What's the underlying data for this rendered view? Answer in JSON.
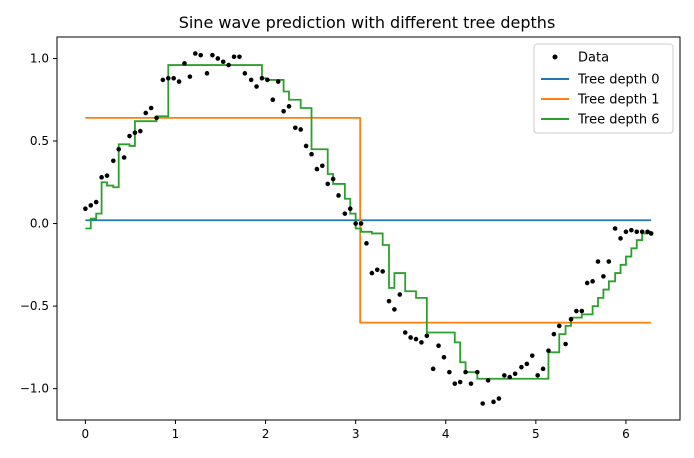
{
  "chart_data": {
    "type": "line",
    "title": "Sine wave prediction with different tree depths",
    "xlabel": "",
    "ylabel": "",
    "xlim": [
      -0.315,
      6.6
    ],
    "ylim": [
      -1.19,
      1.13
    ],
    "x_ticks": [
      0,
      1,
      2,
      3,
      4,
      5,
      6
    ],
    "x_tick_labels": [
      "0",
      "1",
      "2",
      "3",
      "4",
      "5",
      "6"
    ],
    "y_ticks": [
      -1.0,
      -0.5,
      0.0,
      0.5,
      1.0
    ],
    "y_tick_labels": [
      "−1.0",
      "−0.5",
      "0.0",
      "0.5",
      "1.0"
    ],
    "grid": false,
    "legend_position": "top-right",
    "legend": [
      "Data",
      "Tree depth 0",
      "Tree depth 1",
      "Tree depth 6"
    ],
    "colors": {
      "data": "#000000",
      "depth0": "#1f77b4",
      "depth1": "#ff7f0e",
      "depth6": "#2ca02c"
    },
    "scatter": {
      "name": "Data",
      "x": [
        0.0,
        0.06,
        0.12,
        0.18,
        0.24,
        0.31,
        0.37,
        0.43,
        0.49,
        0.55,
        0.61,
        0.67,
        0.73,
        0.79,
        0.86,
        0.92,
        0.98,
        1.04,
        1.1,
        1.16,
        1.22,
        1.28,
        1.35,
        1.41,
        1.47,
        1.53,
        1.59,
        1.65,
        1.71,
        1.77,
        1.84,
        1.9,
        1.96,
        2.02,
        2.08,
        2.14,
        2.2,
        2.26,
        2.33,
        2.39,
        2.45,
        2.51,
        2.57,
        2.63,
        2.69,
        2.75,
        2.81,
        2.88,
        2.94,
        3.0,
        3.06,
        3.12,
        3.18,
        3.24,
        3.3,
        3.37,
        3.43,
        3.49,
        3.55,
        3.61,
        3.67,
        3.73,
        3.79,
        3.86,
        3.92,
        3.98,
        4.04,
        4.1,
        4.16,
        4.22,
        4.28,
        4.35,
        4.41,
        4.47,
        4.53,
        4.59,
        4.65,
        4.71,
        4.77,
        4.84,
        4.9,
        4.96,
        5.02,
        5.08,
        5.14,
        5.2,
        5.26,
        5.33,
        5.39,
        5.45,
        5.51,
        5.57,
        5.63,
        5.69,
        5.75,
        5.81,
        5.88,
        5.94,
        6.0,
        6.06,
        6.12,
        6.18,
        6.24,
        6.28
      ],
      "y": [
        0.09,
        0.11,
        0.13,
        0.28,
        0.29,
        0.38,
        0.45,
        0.4,
        0.53,
        0.55,
        0.56,
        0.67,
        0.7,
        0.64,
        0.87,
        0.88,
        0.88,
        0.86,
        0.97,
        0.89,
        1.03,
        1.02,
        0.91,
        1.02,
        1.0,
        0.98,
        0.96,
        1.01,
        1.01,
        0.91,
        0.87,
        0.83,
        0.88,
        0.87,
        0.75,
        0.86,
        0.68,
        0.71,
        0.58,
        0.57,
        0.47,
        0.42,
        0.33,
        0.35,
        0.24,
        0.27,
        0.17,
        0.06,
        0.09,
        0.0,
        0.0,
        -0.12,
        -0.3,
        -0.28,
        -0.29,
        -0.47,
        -0.52,
        -0.43,
        -0.66,
        -0.69,
        -0.7,
        -0.72,
        -0.68,
        -0.88,
        -0.74,
        -0.81,
        -0.9,
        -0.97,
        -0.96,
        -0.9,
        -0.97,
        -0.9,
        -1.09,
        -0.95,
        -1.08,
        -1.06,
        -0.92,
        -0.93,
        -0.91,
        -0.87,
        -0.85,
        -0.8,
        -0.92,
        -0.88,
        -0.77,
        -0.67,
        -0.62,
        -0.73,
        -0.58,
        -0.53,
        -0.53,
        -0.36,
        -0.35,
        -0.23,
        -0.32,
        -0.23,
        -0.03,
        -0.09,
        -0.05,
        -0.04,
        -0.05,
        -0.05,
        -0.05,
        -0.06
      ]
    },
    "series": [
      {
        "name": "Tree depth 0",
        "step": true,
        "x": [
          0.0,
          6.28
        ],
        "y": [
          0.02,
          0.02
        ]
      },
      {
        "name": "Tree depth 1",
        "step": true,
        "x": [
          0.0,
          2.99,
          3.05,
          6.28
        ],
        "y": [
          0.64,
          0.64,
          -0.6,
          -0.6
        ]
      },
      {
        "name": "Tree depth 6",
        "step": true,
        "x": [
          0.0,
          0.06,
          0.12,
          0.18,
          0.24,
          0.31,
          0.37,
          0.49,
          0.55,
          0.67,
          0.79,
          0.92,
          1.9,
          1.96,
          2.02,
          2.2,
          2.26,
          2.39,
          2.51,
          2.69,
          2.75,
          2.88,
          2.94,
          3.0,
          3.06,
          3.18,
          3.3,
          3.37,
          3.43,
          3.55,
          3.67,
          3.79,
          4.1,
          4.16,
          4.22,
          4.35,
          5.02,
          5.14,
          5.26,
          5.33,
          5.39,
          5.51,
          5.57,
          5.63,
          5.69,
          5.75,
          5.81,
          5.88,
          5.94,
          6.0,
          6.06,
          6.12,
          6.18,
          6.24,
          6.28
        ],
        "y": [
          -0.03,
          0.03,
          0.06,
          0.25,
          0.23,
          0.22,
          0.48,
          0.47,
          0.62,
          0.62,
          0.65,
          0.96,
          0.96,
          0.88,
          0.87,
          0.8,
          0.75,
          0.7,
          0.45,
          0.3,
          0.24,
          0.15,
          0.06,
          -0.03,
          -0.05,
          -0.06,
          -0.13,
          -0.39,
          -0.3,
          -0.41,
          -0.45,
          -0.66,
          -0.72,
          -0.84,
          -0.9,
          -0.94,
          -0.94,
          -0.78,
          -0.67,
          -0.62,
          -0.57,
          -0.55,
          -0.55,
          -0.5,
          -0.45,
          -0.4,
          -0.35,
          -0.3,
          -0.25,
          -0.2,
          -0.15,
          -0.1,
          -0.06,
          -0.05,
          -0.05
        ]
      }
    ]
  }
}
